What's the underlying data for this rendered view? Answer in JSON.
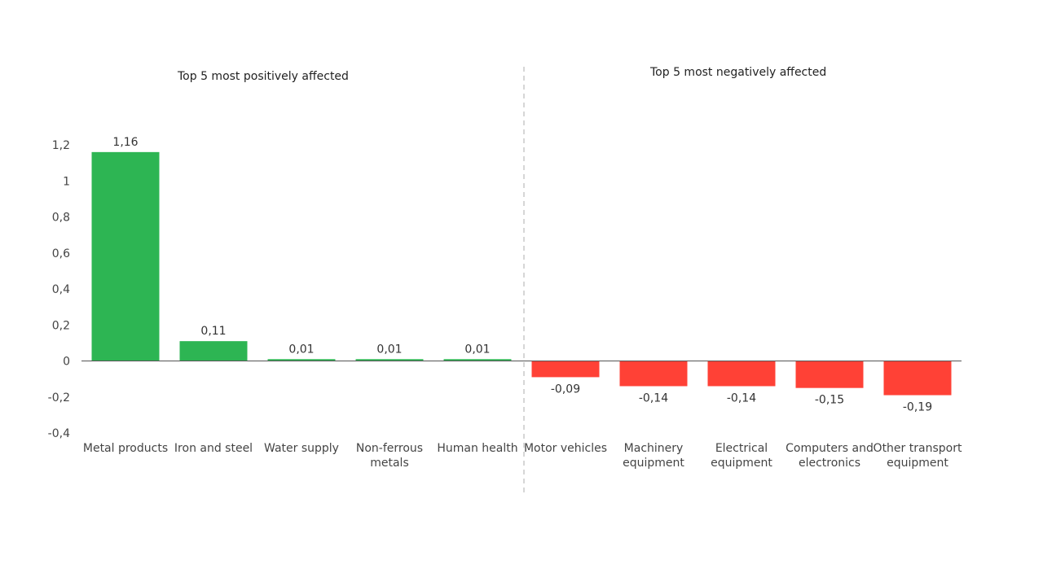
{
  "chart_data": {
    "type": "bar",
    "categories": [
      "Metal products",
      "Iron and steel",
      "Water supply",
      "Non-ferrous metals",
      "Human health",
      "Motor vehicles",
      "Machinery equipment",
      "Electrical equipment",
      "Computers and electronics",
      "Other transport equipment"
    ],
    "category_lines": [
      [
        "Metal products"
      ],
      [
        "Iron and steel"
      ],
      [
        "Water supply"
      ],
      [
        "Non-ferrous",
        "metals"
      ],
      [
        "Human health"
      ],
      [
        "Motor vehicles"
      ],
      [
        "Machinery",
        "equipment"
      ],
      [
        "Electrical",
        "equipment"
      ],
      [
        "Computers and",
        "electronics"
      ],
      [
        "Other transport",
        "equipment"
      ]
    ],
    "values": [
      1.16,
      0.11,
      0.01,
      0.01,
      0.01,
      -0.09,
      -0.14,
      -0.14,
      -0.15,
      -0.19
    ],
    "value_labels": [
      "1,16",
      "0,11",
      "0,01",
      "0,01",
      "0,01",
      "-0,09",
      "-0,14",
      "-0,14",
      "-0,15",
      "-0,19"
    ],
    "yticks": [
      1.2,
      1,
      0.8,
      0.6,
      0.4,
      0.2,
      0,
      -0.2,
      -0.4
    ],
    "ytick_labels": [
      "1,2",
      "1",
      "0,8",
      "0,6",
      "0,4",
      "0,2",
      "0",
      "-0,2",
      "-0,4"
    ],
    "ylim": [
      -0.4,
      1.2
    ],
    "title": "",
    "xlabel": "",
    "ylabel": "",
    "section_titles": {
      "positive": "Top 5 most positively affected",
      "negative": "Top 5 most negatively affected"
    },
    "colors": {
      "positive": "#2db553",
      "negative": "#ff4136",
      "divider": "#c8c8c8",
      "axis": "#555555"
    }
  }
}
